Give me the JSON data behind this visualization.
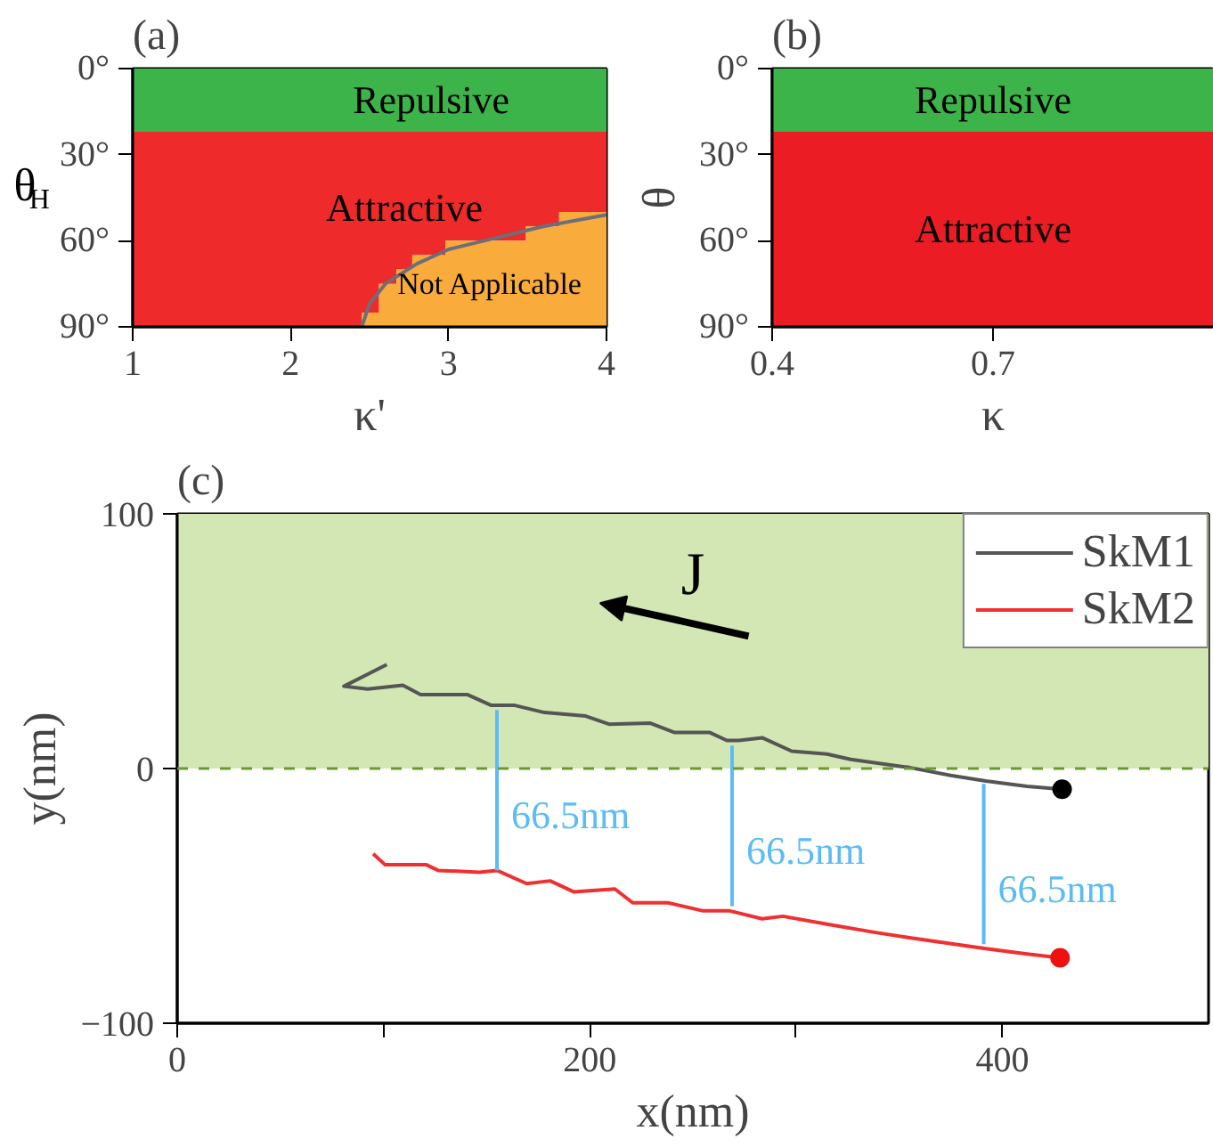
{
  "chart_data": [
    {
      "type": "area",
      "stacked": true,
      "title": "(a)",
      "xlabel": "κ'",
      "ylabel": "θ$_{H}$",
      "x": [
        1,
        2.45,
        2.45,
        2.56,
        2.56,
        2.67,
        2.67,
        2.77,
        2.77,
        2.98,
        2.98,
        3.49,
        3.49,
        3.7,
        3.7,
        4
      ],
      "series": [
        {
          "name": "Repulsive",
          "color": "#3cb44a",
          "values": [
            22,
            22,
            22,
            22,
            22,
            22,
            22,
            22,
            22,
            22,
            22,
            22,
            22,
            22,
            22,
            22
          ]
        },
        {
          "name": "Attractive",
          "color": "#ee2a2a",
          "values": [
            68,
            68,
            63,
            63,
            53,
            53,
            48,
            48,
            43,
            43,
            38,
            38,
            33,
            33,
            28,
            28
          ]
        },
        {
          "name": "Not Applicable",
          "color": "#f9ab3b",
          "values": [
            0,
            0,
            5,
            5,
            15,
            15,
            20,
            20,
            25,
            25,
            30,
            30,
            35,
            35,
            40,
            40
          ]
        },
        {
          "type": "line",
          "color": "#6e6e7a",
          "x": [
            2.45,
            2.5,
            2.6,
            2.8,
            3.0,
            3.3,
            3.6,
            4.0
          ],
          "values": [
            90,
            82,
            75,
            68,
            63,
            59,
            55,
            51
          ]
        }
      ],
      "xlim": [
        1,
        4
      ],
      "ylim": [
        90,
        0
      ],
      "xticks": [
        1,
        2,
        3,
        4
      ],
      "yticks": [
        {
          "value": 0,
          "label": "0°"
        },
        {
          "value": 30,
          "label": "30°"
        },
        {
          "value": 60,
          "label": "60°"
        },
        {
          "value": 90,
          "label": "90°"
        }
      ]
    },
    {
      "type": "area",
      "stacked": true,
      "title": "(b)",
      "xlabel": "κ",
      "ylabel": "θ",
      "x": [
        0.4,
        1.0
      ],
      "series": [
        {
          "name": "Repulsive",
          "color": "#3cb44a",
          "values": [
            22,
            22
          ]
        },
        {
          "name": "Attractive",
          "color": "#ec1c24",
          "values": [
            68,
            68
          ]
        }
      ],
      "xlim": [
        0.4,
        1.0
      ],
      "ylim": [
        90,
        0
      ],
      "xticks": [
        0.4,
        0.7
      ],
      "yticks": [
        {
          "value": 0,
          "label": "0°"
        },
        {
          "value": 30,
          "label": "30°"
        },
        {
          "value": 60,
          "label": "60°"
        },
        {
          "value": 90,
          "label": "90°"
        }
      ]
    },
    {
      "type": "line",
      "title": "(c)",
      "xlabel": "x(nm)",
      "ylabel": "y(nm)",
      "legend": "top right",
      "grid": false,
      "xlim": [
        0,
        500
      ],
      "ylim": [
        -100,
        100
      ],
      "xticks": [
        0,
        {
          "value": 100,
          "label": null
        },
        200,
        {
          "value": 300,
          "label": null
        },
        400
      ],
      "yticks": [
        -100,
        0,
        100
      ],
      "bands": [
        {
          "axis": "y",
          "from": 0,
          "to": 100,
          "color": "#d3e7b5"
        }
      ],
      "ref_lines": [
        {
          "axis": "y",
          "value": 0,
          "color": "#6a9a2a",
          "line_style": "dashed"
        }
      ],
      "series": [
        {
          "name": "SkM1",
          "color": "#555555",
          "x": [
            101.6,
            80.8,
            92.3,
            109.4,
            118,
            140.8,
            152.3,
            163.7,
            178,
            198,
            209.3,
            229.4,
            240.9,
            258,
            266.5,
            272.2,
            283.6,
            297.9,
            315,
            326.5,
            355,
            375,
            392,
            412,
            429
          ],
          "values": [
            40.8,
            32.3,
            31.2,
            32.7,
            29,
            29,
            24.8,
            24.8,
            22,
            20.6,
            17.4,
            17.8,
            14.2,
            14.2,
            11,
            11,
            12.1,
            6.8,
            5.7,
            3.6,
            0.4,
            -2.7,
            -4.9,
            -7,
            -8.1
          ]
        },
        {
          "name": "SkM2",
          "color": "#f03030",
          "x": [
            95,
            100.8,
            120.8,
            126.5,
            146.5,
            155,
            169.4,
            180.8,
            192.2,
            212.2,
            220.8,
            237.9,
            255,
            267.9,
            283.6,
            293.6,
            315,
            337.9,
            355,
            392,
            412,
            428
          ],
          "values": [
            -33.5,
            -37.8,
            -37.8,
            -40,
            -40.7,
            -40,
            -45.2,
            -44.1,
            -48.4,
            -47.3,
            -52.7,
            -52.7,
            -55.9,
            -55.9,
            -59,
            -58,
            -61.1,
            -64.3,
            -66.4,
            -70.7,
            -72.8,
            -74.3
          ]
        },
        {
          "type": "scatter",
          "color": "#000000",
          "x": [
            429
          ],
          "values": [
            -8.1
          ]
        },
        {
          "type": "scatter",
          "color": "#f01010",
          "x": [
            428
          ],
          "values": [
            -74.3
          ]
        },
        {
          "name": "66.5nm",
          "color": "#5bbcf5",
          "x": [
            155,
            155
          ],
          "values": [
            23,
            -40
          ]
        },
        {
          "name": "66.5nm",
          "color": "#5bbcf5",
          "x": [
            269,
            269
          ],
          "values": [
            9,
            -54
          ]
        },
        {
          "name": "66.5nm",
          "color": "#5bbcf5",
          "x": [
            391,
            391
          ],
          "values": [
            -6,
            -69
          ]
        }
      ],
      "annotations": [
        "J"
      ]
    }
  ]
}
